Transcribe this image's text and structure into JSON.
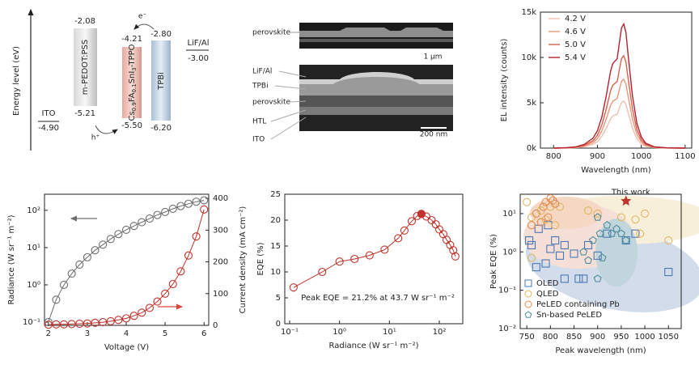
{
  "energy_diagram": {
    "axis_label": "Energy level (eV)",
    "ito": {
      "name": "ITO",
      "level": "-4.90"
    },
    "pedot": {
      "name": "m-PEDOT:PSS",
      "lumo": "-2.08",
      "homo": "-5.21"
    },
    "perovskite": {
      "name_parts": [
        "Cs",
        "0.9",
        "FA",
        "0.1",
        "SnI",
        "3",
        "-TPPO"
      ],
      "lumo": "-4.21",
      "homo": "-5.50"
    },
    "tpbi": {
      "name": "TPBi",
      "lumo": "-2.80",
      "homo": "-6.20"
    },
    "cathode": {
      "name": "LiF/Al",
      "level": "-3.00"
    },
    "electron": "e⁻",
    "hole": "h⁺"
  },
  "sem_images": {
    "top": {
      "label": "perovskite",
      "scale_bar": "1 μm"
    },
    "bottom": {
      "labels": [
        "LiF/Al",
        "TPBi",
        "perovskite",
        "HTL",
        "ITO"
      ],
      "scale_bar": "200 nm"
    }
  },
  "chart_data": [
    {
      "type": "line",
      "xlabel": "Wavelength (nm)",
      "ylabel": "EL intensity (counts)",
      "x": [
        800,
        830,
        850,
        870,
        890,
        900,
        910,
        920,
        930,
        935,
        940,
        945,
        950,
        955,
        960,
        965,
        970,
        980,
        990,
        1000,
        1010,
        1030,
        1060,
        1100
      ],
      "series": [
        {
          "name": "4.2 V",
          "color": "#f2bfae",
          "values": [
            0,
            16,
            52,
            156,
            416,
            728,
            1300,
            2184,
            3224,
            3536,
            3640,
            3744,
            4420,
            5044,
            5200,
            4836,
            3900,
            2184,
            1040,
            468,
            208,
            52,
            10,
            0
          ]
        },
        {
          "name": "4.6 V",
          "color": "#ea957c",
          "values": [
            0,
            23,
            76,
            228,
            608,
            1064,
            1900,
            3192,
            4712,
            5168,
            5320,
            5472,
            6460,
            7372,
            7600,
            7068,
            5700,
            3192,
            1520,
            684,
            304,
            76,
            15,
            0
          ]
        },
        {
          "name": "5.0 V",
          "color": "#d9604c",
          "values": [
            0,
            31,
            102,
            306,
            816,
            1428,
            2550,
            4284,
            6324,
            6936,
            7140,
            7344,
            8670,
            9894,
            10200,
            9486,
            7650,
            4284,
            2040,
            918,
            408,
            102,
            20,
            0
          ]
        },
        {
          "name": "5.4 V",
          "color": "#b3222f",
          "values": [
            0,
            41,
            137,
            411,
            1096,
            1918,
            3425,
            5754,
            8494,
            9316,
            9590,
            9864,
            11645,
            13289,
            13700,
            12741,
            10275,
            5754,
            2740,
            1233,
            548,
            137,
            27,
            0
          ]
        }
      ],
      "xlim": [
        770,
        1115
      ],
      "xticks": [
        800,
        900,
        1000,
        1100
      ],
      "ylim": [
        0,
        15000
      ],
      "yticks": [
        {
          "value": 0,
          "label": "0k"
        },
        {
          "value": 5000,
          "label": "5k"
        },
        {
          "value": 10000,
          "label": "10k"
        },
        {
          "value": 15000,
          "label": "15k"
        }
      ],
      "legend": "upper left"
    },
    {
      "type": "line",
      "xlabel": "Voltage (V)",
      "ylabel": "Radiance (W sr⁻¹ m⁻²)",
      "y2label": "Current density (mA cm⁻²)",
      "x": [
        2.0,
        2.2,
        2.4,
        2.6,
        2.8,
        3.0,
        3.2,
        3.4,
        3.6,
        3.8,
        4.0,
        4.2,
        4.4,
        4.6,
        4.8,
        5.0,
        5.2,
        5.4,
        5.6,
        5.8,
        6.0
      ],
      "series": [
        {
          "color": "#6e6e6e",
          "marker": "circle",
          "values": [
            0.1,
            0.4,
            1.0,
            2.0,
            3.5,
            5.5,
            8.5,
            12,
            17,
            23,
            30,
            38,
            48,
            60,
            75,
            90,
            110,
            130,
            150,
            170,
            185
          ]
        },
        {
          "color": "#c0332b",
          "marker": "circle",
          "axis": "y2",
          "values": [
            2,
            3,
            3,
            4,
            5,
            6,
            8,
            10,
            13,
            17,
            22,
            30,
            40,
            55,
            75,
            100,
            130,
            170,
            220,
            280,
            365
          ]
        }
      ],
      "xlim": [
        1.9,
        6.12
      ],
      "xticks": [
        2,
        3,
        4,
        5,
        6
      ],
      "yscale": "log",
      "ylim": [
        0.082,
        270
      ],
      "yticks": [
        {
          "value": 0.1,
          "label": "10⁻¹"
        },
        {
          "value": 1,
          "label": "10⁰"
        },
        {
          "value": 10,
          "label": "10¹"
        },
        {
          "value": 100,
          "label": "10²"
        }
      ],
      "y2lim": [
        0,
        413
      ],
      "y2ticks": [
        0,
        100,
        200,
        300,
        400
      ]
    },
    {
      "type": "line",
      "xlabel": "Radiance (W sr⁻¹ m⁻²)",
      "ylabel": "EQE (%)",
      "annotation": "Peak EQE = 21.2% at 43.7 W sr⁻¹ m⁻²",
      "series": [
        {
          "color": "#c0332b",
          "marker": "circle",
          "x": [
            0.12,
            0.45,
            1,
            2,
            4,
            8,
            15,
            20,
            28,
            36,
            43.7,
            55,
            70,
            85,
            100,
            120,
            140,
            165,
            190,
            210
          ],
          "values": [
            7,
            10,
            12,
            12.5,
            13.2,
            14.3,
            16.5,
            18,
            19.8,
            20.8,
            21.2,
            20.7,
            20,
            19.2,
            18.2,
            17.3,
            16.2,
            15.2,
            14.2,
            13
          ]
        },
        {
          "color": "#c0332b",
          "marker": "filled",
          "x": [
            43.7
          ],
          "values": [
            21.2
          ]
        }
      ],
      "xscale": "log",
      "xlim": [
        0.08,
        295
      ],
      "xticks": [
        {
          "value": 0.1,
          "label": "10⁻¹"
        },
        {
          "value": 1,
          "label": "10⁰"
        },
        {
          "value": 10,
          "label": "10¹"
        },
        {
          "value": 100,
          "label": "10²"
        }
      ],
      "ylim": [
        0,
        25
      ],
      "yticks": [
        0,
        5,
        10,
        15,
        20,
        25
      ]
    },
    {
      "type": "scatter",
      "xlabel": "Peak wavelength (nm)",
      "ylabel": "Peak EQE (%)",
      "series": [
        {
          "name": "OLED",
          "color": "#4a78b5",
          "marker": "square",
          "x": [
            755,
            760,
            770,
            775,
            790,
            795,
            800,
            810,
            820,
            830,
            830,
            850,
            860,
            870,
            880,
            900,
            920,
            960,
            980,
            1050
          ],
          "values": [
            2,
            1.5,
            0.4,
            4,
            0.5,
            5,
            1.2,
            2,
            0.8,
            1.5,
            0.2,
            0.9,
            0.2,
            0.2,
            1.5,
            0.8,
            3,
            2,
            3,
            0.3
          ]
        },
        {
          "name": "QLED",
          "color": "#e2b560",
          "marker": "circle",
          "x": [
            750,
            760,
            760,
            780,
            790,
            800,
            810,
            820,
            880,
            900,
            950,
            980,
            990,
            1000,
            1050
          ],
          "values": [
            20,
            8,
            0.7,
            12,
            7,
            15,
            5,
            15,
            12,
            10,
            8,
            7,
            3,
            10,
            2
          ]
        },
        {
          "name": "PeLED containing Pb",
          "color": "#e58a4e",
          "marker": "circle",
          "x": [
            760,
            770,
            780,
            785,
            790,
            795,
            800,
            805,
            810
          ],
          "values": [
            5,
            10,
            6,
            15,
            20,
            8,
            25,
            22,
            18
          ]
        },
        {
          "name": "Sn-based PeLED",
          "color": "#4f8c9c",
          "marker": "pentagon",
          "x": [
            870,
            880,
            890,
            900,
            900,
            905,
            910,
            920,
            930,
            940,
            950,
            960
          ],
          "values": [
            1,
            0.6,
            2,
            8,
            0.2,
            3,
            0.7,
            5,
            3,
            4,
            3,
            2
          ]
        }
      ],
      "annotation": {
        "text": "This work",
        "x": 960,
        "y": 21.2,
        "color": "#c0332b"
      },
      "xlim": [
        736,
        1077
      ],
      "xticks": [
        750,
        800,
        850,
        900,
        950,
        1000,
        1050
      ],
      "yscale": "log",
      "ylim": [
        0.01,
        32
      ],
      "yticks": [
        {
          "value": 0.01,
          "label": "10⁻²"
        },
        {
          "value": 0.1,
          "label": "10⁻¹"
        },
        {
          "value": 1,
          "label": "10⁰"
        },
        {
          "value": 10,
          "label": "10¹"
        }
      ],
      "legend": "lower left"
    }
  ]
}
